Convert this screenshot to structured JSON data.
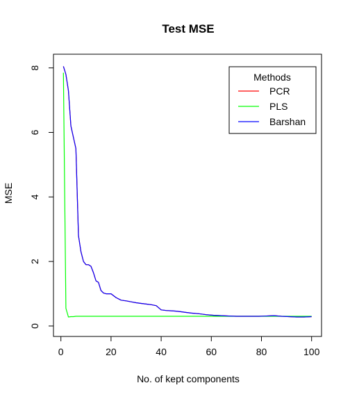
{
  "chart_data": {
    "type": "line",
    "title": "Test MSE",
    "xlabel": "No. of kept components",
    "ylabel": "MSE",
    "xlim": [
      1,
      100
    ],
    "ylim": [
      0,
      8.1
    ],
    "xticks": [
      0,
      20,
      40,
      60,
      80,
      100
    ],
    "yticks": [
      0,
      2,
      4,
      6,
      8
    ],
    "grid": false,
    "legend": {
      "title": "Methods",
      "placement": "top-right",
      "entries": [
        "PCR",
        "PLS",
        "Barshan"
      ]
    },
    "series": [
      {
        "name": "PCR",
        "color": "#ff0000",
        "x": [
          1,
          2,
          3,
          4,
          5,
          6,
          7,
          8,
          9,
          10,
          11,
          12,
          13,
          14,
          15,
          16,
          17,
          18,
          19,
          20,
          22,
          24,
          26,
          28,
          30,
          32,
          34,
          36,
          38,
          40,
          42,
          44,
          46,
          48,
          50,
          52,
          55,
          58,
          61,
          64,
          67,
          70,
          73,
          76,
          79,
          82,
          85,
          88,
          91,
          94,
          97,
          100
        ],
        "y": [
          8.05,
          7.8,
          7.3,
          6.2,
          5.85,
          5.5,
          2.8,
          2.3,
          2.0,
          1.9,
          1.9,
          1.85,
          1.65,
          1.4,
          1.35,
          1.1,
          1.02,
          1.0,
          1.0,
          1.0,
          0.88,
          0.8,
          0.78,
          0.75,
          0.72,
          0.7,
          0.68,
          0.66,
          0.63,
          0.5,
          0.48,
          0.47,
          0.46,
          0.44,
          0.42,
          0.4,
          0.38,
          0.35,
          0.33,
          0.32,
          0.31,
          0.3,
          0.3,
          0.3,
          0.3,
          0.31,
          0.32,
          0.3,
          0.29,
          0.28,
          0.28,
          0.29
        ]
      },
      {
        "name": "PLS",
        "color": "#00ff00",
        "x": [
          1,
          2,
          3,
          4,
          5,
          6,
          7,
          8,
          9,
          10,
          15,
          20,
          30,
          40,
          50,
          60,
          70,
          80,
          90,
          100
        ],
        "y": [
          7.85,
          0.55,
          0.28,
          0.29,
          0.29,
          0.3,
          0.3,
          0.3,
          0.3,
          0.3,
          0.3,
          0.3,
          0.3,
          0.3,
          0.3,
          0.3,
          0.3,
          0.3,
          0.3,
          0.3
        ]
      },
      {
        "name": "Barshan",
        "color": "#0000ff",
        "x": [
          1,
          2,
          3,
          4,
          5,
          6,
          7,
          8,
          9,
          10,
          11,
          12,
          13,
          14,
          15,
          16,
          17,
          18,
          19,
          20,
          22,
          24,
          26,
          28,
          30,
          32,
          34,
          36,
          38,
          40,
          42,
          44,
          46,
          48,
          50,
          52,
          55,
          58,
          61,
          64,
          67,
          70,
          73,
          76,
          79,
          82,
          85,
          88,
          91,
          94,
          97,
          100
        ],
        "y": [
          8.05,
          7.8,
          7.3,
          6.2,
          5.85,
          5.5,
          2.8,
          2.3,
          2.0,
          1.9,
          1.9,
          1.85,
          1.65,
          1.4,
          1.35,
          1.1,
          1.02,
          1.0,
          1.0,
          1.0,
          0.88,
          0.8,
          0.78,
          0.75,
          0.72,
          0.7,
          0.68,
          0.66,
          0.63,
          0.5,
          0.48,
          0.47,
          0.46,
          0.44,
          0.42,
          0.4,
          0.38,
          0.35,
          0.33,
          0.32,
          0.31,
          0.3,
          0.3,
          0.3,
          0.3,
          0.31,
          0.32,
          0.3,
          0.29,
          0.28,
          0.28,
          0.29
        ]
      }
    ]
  }
}
